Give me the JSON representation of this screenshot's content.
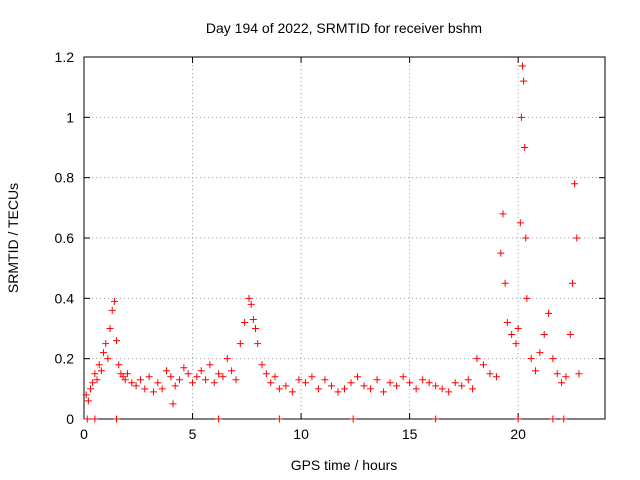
{
  "chart_data": {
    "type": "scatter",
    "title": "Day 194 of 2022, SRMTID for receiver bshm",
    "xlabel": "GPS time / hours",
    "ylabel": "SRMTID / TECUs",
    "xlim": [
      0,
      24
    ],
    "ylim": [
      0,
      1.2
    ],
    "xticks": [
      0,
      5,
      10,
      15,
      20
    ],
    "yticks": [
      0,
      0.2,
      0.4,
      0.6,
      0.8,
      1,
      1.2
    ],
    "xtick_labels": [
      "0",
      "5",
      "10",
      "15",
      "20"
    ],
    "ytick_labels": [
      "0",
      "0.2",
      "0.4",
      "0.6",
      "0.8",
      "1",
      "1.2"
    ],
    "grid": true,
    "marker": "+",
    "color": "#ff0000",
    "series": [
      {
        "name": "SRMTID",
        "x": [
          0.1,
          0.2,
          0.3,
          0.4,
          0.5,
          0.6,
          0.7,
          0.8,
          0.9,
          1.0,
          1.1,
          1.2,
          1.3,
          1.4,
          1.5,
          1.6,
          1.7,
          1.8,
          1.9,
          2.0,
          2.2,
          2.4,
          2.6,
          2.8,
          3.0,
          3.2,
          3.4,
          3.6,
          3.8,
          4.0,
          4.2,
          4.4,
          4.6,
          4.8,
          5.0,
          5.2,
          5.4,
          5.6,
          5.8,
          6.0,
          6.2,
          6.4,
          6.6,
          6.8,
          7.0,
          7.2,
          7.4,
          7.6,
          7.7,
          7.8,
          7.9,
          8.0,
          8.2,
          8.4,
          8.6,
          8.8,
          9.0,
          9.3,
          9.6,
          9.9,
          10.2,
          10.5,
          10.8,
          11.1,
          11.4,
          11.7,
          12.0,
          12.3,
          12.6,
          12.9,
          13.2,
          13.5,
          13.8,
          14.1,
          14.4,
          14.7,
          15.0,
          15.3,
          15.6,
          15.9,
          16.2,
          16.5,
          16.8,
          17.1,
          17.4,
          17.7,
          17.9,
          18.1,
          18.4,
          18.7,
          19.0,
          19.2,
          19.3,
          19.4,
          19.5,
          19.7,
          19.9,
          20.0,
          20.1,
          20.15,
          20.2,
          20.25,
          20.3,
          20.35,
          20.4,
          20.6,
          20.8,
          21.0,
          21.2,
          21.4,
          21.6,
          21.8,
          22.0,
          22.2,
          22.4,
          22.5,
          22.6,
          22.7,
          22.8,
          0.15,
          0.5,
          1.5,
          4.1,
          6.2,
          9.0,
          12.4,
          16.2,
          20.0,
          21.6,
          22.1
        ],
        "y": [
          0.08,
          0.06,
          0.1,
          0.12,
          0.15,
          0.13,
          0.18,
          0.16,
          0.22,
          0.25,
          0.2,
          0.3,
          0.36,
          0.39,
          0.26,
          0.18,
          0.15,
          0.14,
          0.13,
          0.15,
          0.12,
          0.11,
          0.13,
          0.1,
          0.14,
          0.09,
          0.12,
          0.1,
          0.16,
          0.14,
          0.11,
          0.13,
          0.17,
          0.15,
          0.12,
          0.14,
          0.16,
          0.13,
          0.18,
          0.12,
          0.15,
          0.14,
          0.2,
          0.16,
          0.13,
          0.25,
          0.32,
          0.4,
          0.38,
          0.33,
          0.3,
          0.25,
          0.18,
          0.15,
          0.12,
          0.14,
          0.1,
          0.11,
          0.09,
          0.13,
          0.12,
          0.14,
          0.1,
          0.13,
          0.11,
          0.09,
          0.1,
          0.12,
          0.14,
          0.11,
          0.1,
          0.13,
          0.09,
          0.12,
          0.11,
          0.14,
          0.12,
          0.1,
          0.13,
          0.12,
          0.11,
          0.1,
          0.09,
          0.12,
          0.11,
          0.13,
          0.1,
          0.2,
          0.18,
          0.15,
          0.14,
          0.55,
          0.68,
          0.45,
          0.32,
          0.28,
          0.25,
          0.3,
          0.65,
          1.0,
          1.17,
          1.12,
          0.9,
          0.6,
          0.4,
          0.2,
          0.16,
          0.22,
          0.28,
          0.35,
          0.2,
          0.15,
          0.12,
          0.14,
          0.28,
          0.45,
          0.78,
          0.6,
          0.15,
          0.0,
          0.0,
          0.0,
          0.05,
          0.0,
          0.0,
          0.0,
          0.0,
          0.0,
          0.0,
          0.0
        ]
      }
    ]
  }
}
